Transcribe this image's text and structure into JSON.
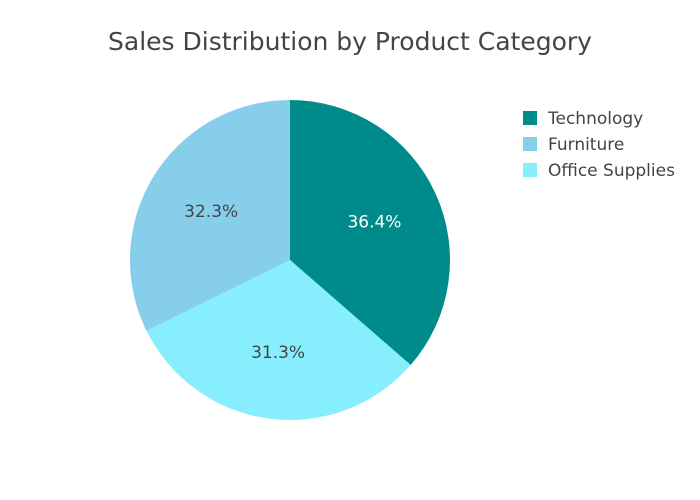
{
  "chart_data": {
    "type": "pie",
    "title": "Sales Distribution by Product Category",
    "slices": [
      {
        "label": "Technology",
        "value": 36.4,
        "text": "36.4%",
        "color": "#008b8b",
        "text_color": "#ffffff"
      },
      {
        "label": "Office Supplies",
        "value": 31.3,
        "text": "31.3%",
        "color": "#87eefd",
        "text_color": "#444444"
      },
      {
        "label": "Furniture",
        "value": 32.3,
        "text": "32.3%",
        "color": "#87ceeb",
        "text_color": "#444444"
      }
    ],
    "legend": {
      "position": "top-right",
      "entries": [
        "Technology",
        "Furniture",
        "Office Supplies"
      ]
    },
    "start_angle": "12 o'clock",
    "direction": "clockwise"
  }
}
